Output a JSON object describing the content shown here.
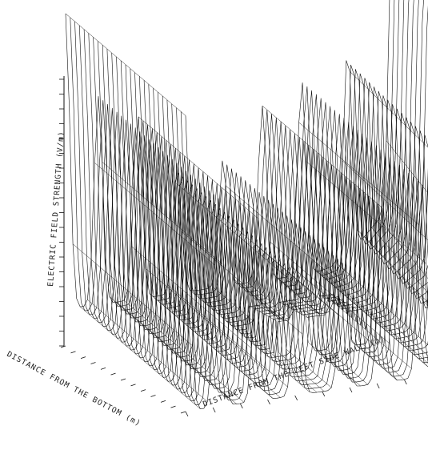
{
  "chart_data": {
    "type": "surface",
    "zlabel": "ELECTRIC FIELD STRENGTH (V/m)",
    "xlabel": "DISTANCE FROM THE LEFT SIDE WALL (m)",
    "ylabel": "DISTANCE FROM THE BOTTOM (m)",
    "peaks_relative": [
      0.88,
      0.62,
      0.55,
      0.38,
      0.38,
      0.52,
      0.58,
      0.62,
      1.0
    ],
    "baseline_relative": 0.12,
    "plateau_relative": 0.22,
    "grid": "wireframe",
    "colors": {
      "line": "#111111",
      "background": "#ffffff"
    }
  }
}
